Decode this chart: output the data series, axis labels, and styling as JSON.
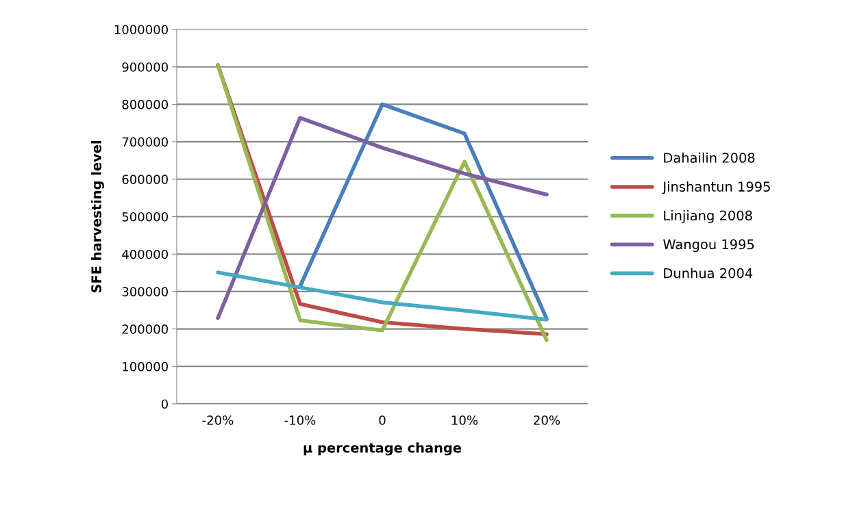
{
  "chart_data": {
    "type": "line",
    "xlabel": "μ percentage change",
    "ylabel": "SFE harvesting level",
    "categories": [
      "-20%",
      "-10%",
      "0",
      "10%",
      "20%"
    ],
    "series": [
      {
        "name": "Dahailin 2008",
        "color": "#4a7ebb",
        "values": [
          null,
          314000,
          800000,
          722000,
          227000
        ]
      },
      {
        "name": "Jinshantun 1995",
        "color": "#be4b48",
        "values": [
          905000,
          267000,
          218000,
          200000,
          186000
        ]
      },
      {
        "name": "Linjiang 2008",
        "color": "#98b954",
        "values": [
          905000,
          223000,
          196000,
          647000,
          170000
        ]
      },
      {
        "name": "Wangou 1995",
        "color": "#7d60a0",
        "values": [
          229000,
          764000,
          684000,
          615000,
          559000
        ]
      },
      {
        "name": "Dunhua 2004",
        "color": "#46aac5",
        "values": [
          351000,
          311000,
          271000,
          249000,
          225000
        ]
      }
    ],
    "ylim": [
      0,
      1000000
    ],
    "yticks": [
      0,
      100000,
      200000,
      300000,
      400000,
      500000,
      600000,
      700000,
      800000,
      900000,
      1000000
    ],
    "grid": "y",
    "legend": "right",
    "marker": "none",
    "line_style": "solid"
  }
}
